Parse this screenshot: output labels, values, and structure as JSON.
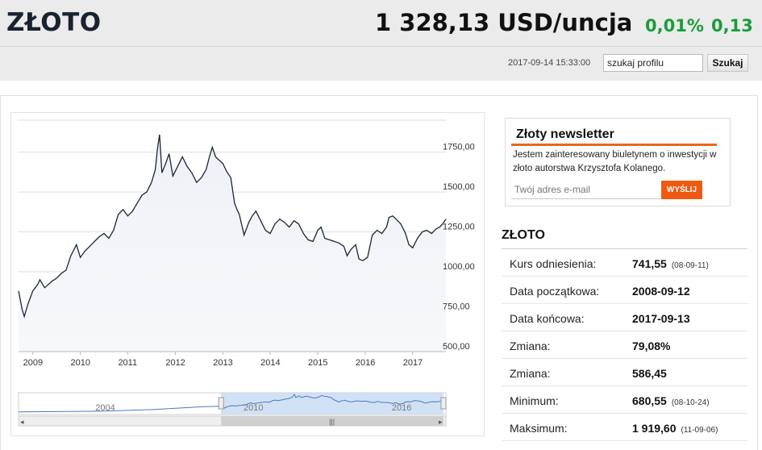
{
  "header": {
    "title": "ZŁOTO",
    "price": "1 328,13 USD/uncja",
    "change_pct": "0,01%",
    "change_abs": "0,13",
    "timestamp": "2017-09-14 15:33:00",
    "search_value": "szukaj profilu",
    "search_button": "Szukaj"
  },
  "newsletter": {
    "title": "Złoty newsletter",
    "text": "Jestem zainteresowany biuletynem o inwestycji w złoto autorstwa Krzysztofa Kolanego.",
    "email_placeholder": "Twój adres e-mail",
    "send_button": "WYŚLIJ"
  },
  "stats": {
    "title": "ZŁOTO",
    "rows": [
      {
        "label": "Kurs odniesienia:",
        "value": "741,55",
        "note": "(08-09-11)"
      },
      {
        "label": "Data początkowa:",
        "value": "2008-09-12",
        "note": ""
      },
      {
        "label": "Data końcowa:",
        "value": "2017-09-13",
        "note": ""
      },
      {
        "label": "Zmiana:",
        "value": "79,08%",
        "note": ""
      },
      {
        "label": "Zmiana:",
        "value": "586,45",
        "note": ""
      },
      {
        "label": "Minimum:",
        "value": "680,55",
        "note": "(08-10-24)"
      },
      {
        "label": "Maksimum:",
        "value": "1 919,60",
        "note": "(11-09-06)"
      }
    ]
  },
  "colors": {
    "accent": "#e8671c",
    "positive": "#1a9c3a",
    "line": "#1b2537",
    "navigator_fill": "#c9dcf3"
  },
  "chart_data": {
    "type": "line",
    "x_unit": "year",
    "ylim": [
      500,
      1950
    ],
    "y_ticks": [
      "500,00",
      "750,00",
      "1000,00",
      "1250,00",
      "1500,00",
      "1750,00"
    ],
    "y_tick_values": [
      500,
      750,
      1000,
      1250,
      1500,
      1750
    ],
    "x_ticks": [
      "2009",
      "2010",
      "2011",
      "2012",
      "2013",
      "2014",
      "2015",
      "2016",
      "2017"
    ],
    "x_tick_values": [
      2009,
      2010,
      2011,
      2012,
      2013,
      2014,
      2015,
      2016,
      2017
    ],
    "xlim": [
      2008.7,
      2017.7
    ],
    "grid": true,
    "series": [
      {
        "x": [
          2008.7,
          2008.78,
          2008.82,
          2008.9,
          2009.0,
          2009.1,
          2009.15,
          2009.25,
          2009.4,
          2009.5,
          2009.6,
          2009.7,
          2009.8,
          2009.92,
          2010.0,
          2010.1,
          2010.2,
          2010.3,
          2010.4,
          2010.5,
          2010.6,
          2010.7,
          2010.8,
          2010.9,
          2011.0,
          2011.1,
          2011.2,
          2011.3,
          2011.4,
          2011.5,
          2011.58,
          2011.63,
          2011.67,
          2011.72,
          2011.8,
          2011.87,
          2011.95,
          2012.05,
          2012.15,
          2012.25,
          2012.35,
          2012.45,
          2012.55,
          2012.65,
          2012.72,
          2012.78,
          2012.85,
          2012.92,
          2013.0,
          2013.08,
          2013.17,
          2013.25,
          2013.3,
          2013.35,
          2013.45,
          2013.55,
          2013.62,
          2013.7,
          2013.8,
          2013.9,
          2014.0,
          2014.1,
          2014.2,
          2014.3,
          2014.4,
          2014.5,
          2014.6,
          2014.7,
          2014.8,
          2014.9,
          2015.0,
          2015.07,
          2015.15,
          2015.25,
          2015.35,
          2015.45,
          2015.55,
          2015.62,
          2015.7,
          2015.8,
          2015.87,
          2015.95,
          2016.05,
          2016.15,
          2016.25,
          2016.35,
          2016.45,
          2016.5,
          2016.58,
          2016.65,
          2016.75,
          2016.85,
          2016.92,
          2017.0,
          2017.1,
          2017.2,
          2017.3,
          2017.4,
          2017.5,
          2017.57,
          2017.63,
          2017.7
        ],
        "y": [
          880,
          760,
          720,
          800,
          880,
          920,
          950,
          900,
          940,
          960,
          990,
          1010,
          1100,
          1170,
          1090,
          1130,
          1160,
          1190,
          1220,
          1240,
          1210,
          1260,
          1360,
          1390,
          1350,
          1380,
          1430,
          1480,
          1500,
          1560,
          1640,
          1780,
          1860,
          1620,
          1680,
          1740,
          1600,
          1660,
          1720,
          1660,
          1620,
          1560,
          1590,
          1640,
          1720,
          1780,
          1720,
          1700,
          1680,
          1630,
          1590,
          1430,
          1390,
          1360,
          1230,
          1310,
          1350,
          1380,
          1320,
          1260,
          1240,
          1300,
          1330,
          1310,
          1280,
          1320,
          1300,
          1240,
          1200,
          1190,
          1260,
          1280,
          1210,
          1200,
          1190,
          1180,
          1160,
          1100,
          1140,
          1170,
          1080,
          1070,
          1090,
          1230,
          1260,
          1240,
          1280,
          1340,
          1350,
          1330,
          1300,
          1240,
          1170,
          1150,
          1210,
          1250,
          1260,
          1240,
          1270,
          1280,
          1300,
          1330
        ]
      }
    ],
    "navigator": {
      "x_ticks": [
        "2004",
        "2010",
        "2016"
      ],
      "x_tick_values": [
        2004,
        2010,
        2016
      ],
      "xlim": [
        2000.5,
        2017.8
      ],
      "selected_range": [
        2008.7,
        2017.7
      ]
    }
  }
}
